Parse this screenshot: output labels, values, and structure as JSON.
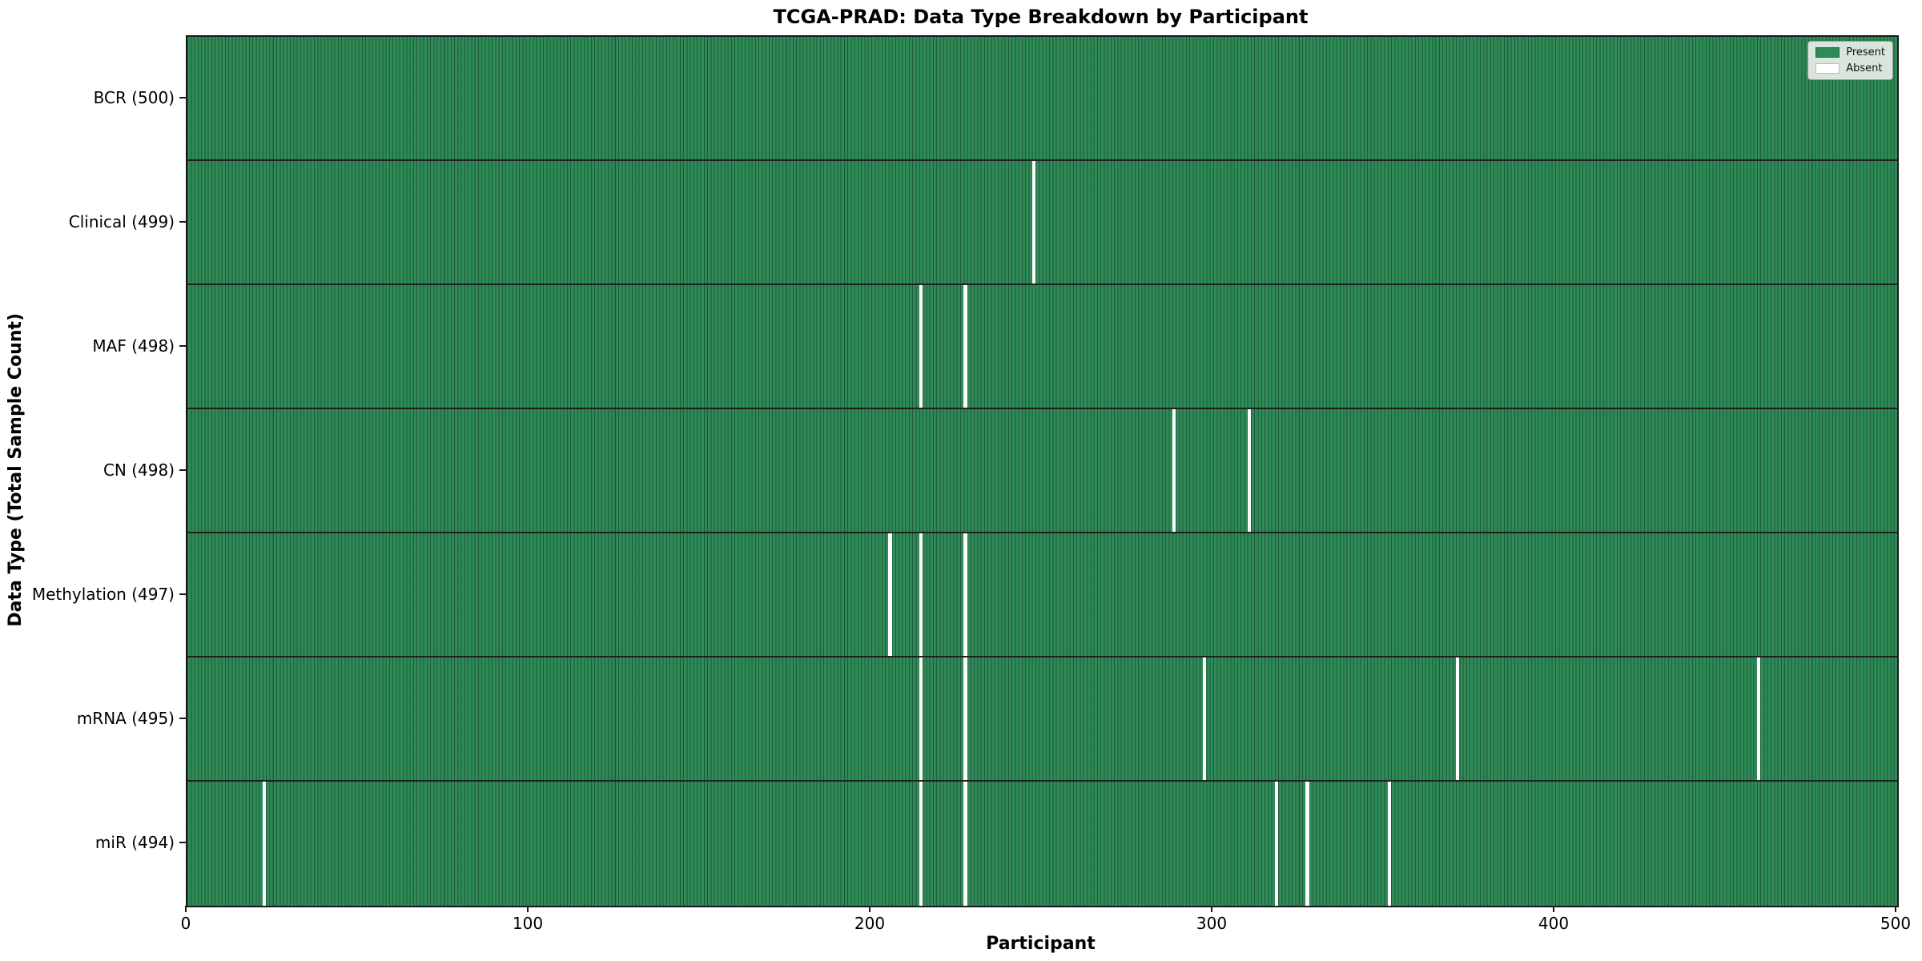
{
  "figure": {
    "title": "TCGA-PRAD: Data Type Breakdown by Participant",
    "xlabel": "Participant",
    "ylabel": "Data Type (Total Sample Count)"
  },
  "colors": {
    "present": "#2e8b57",
    "absent": "#ffffff",
    "bar_edge": "#1e5c3c",
    "grid_line": "#1f1f1f"
  },
  "chart_data": {
    "type": "heatmap",
    "title": "TCGA-PRAD: Data Type Breakdown by Participant",
    "xlabel": "Participant",
    "ylabel": "Data Type (Total Sample Count)",
    "x_range": [
      0,
      500
    ],
    "x_ticks": [
      "0",
      "100",
      "200",
      "300",
      "400",
      "500"
    ],
    "x_tick_values": [
      0,
      100,
      200,
      300,
      400,
      500
    ],
    "n_participants": 500,
    "legend_position": "upper right",
    "legend": [
      {
        "label": "Present",
        "color": "#2e8b57"
      },
      {
        "label": "Absent",
        "color": "#ffffff"
      }
    ],
    "rows": [
      {
        "label": "BCR (500)",
        "total": 500,
        "absent_participants": []
      },
      {
        "label": "Clinical (499)",
        "total": 499,
        "absent_participants": [
          247
        ]
      },
      {
        "label": "MAF (498)",
        "total": 498,
        "absent_participants": [
          214,
          227
        ]
      },
      {
        "label": "CN (498)",
        "total": 498,
        "absent_participants": [
          288,
          310
        ]
      },
      {
        "label": "Methylation (497)",
        "total": 497,
        "absent_participants": [
          205,
          214,
          227
        ]
      },
      {
        "label": "mRNA (495)",
        "total": 495,
        "absent_participants": [
          214,
          227,
          297,
          371,
          459
        ]
      },
      {
        "label": "miR (494)",
        "total": 494,
        "absent_participants": [
          22,
          214,
          227,
          318,
          327,
          351
        ]
      }
    ]
  }
}
